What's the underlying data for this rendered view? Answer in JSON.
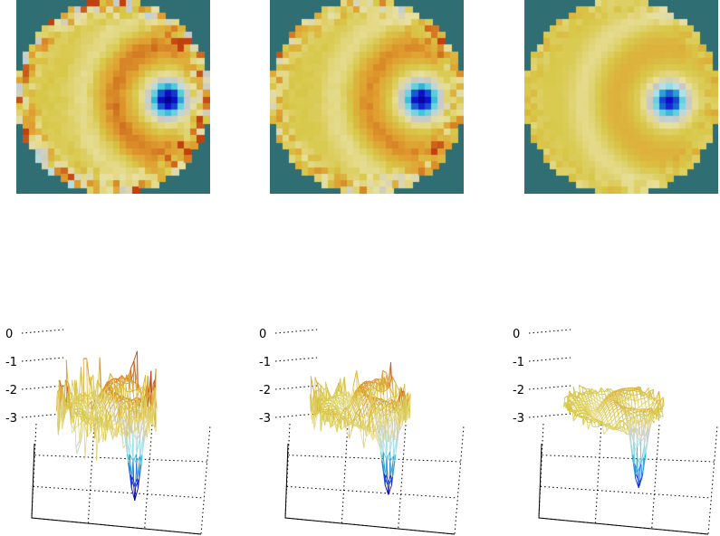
{
  "colors": {
    "background": "#ffffff",
    "mask": "#2f6f73",
    "neutral": "#c8c8c8",
    "colormap": [
      "#00008b",
      "#1010d0",
      "#1a6fd0",
      "#40c8d8",
      "#b4e4e8",
      "#c8c8c8",
      "#e8e0a0",
      "#d8c84a",
      "#e0a030",
      "#c04010"
    ]
  },
  "chart_data": [
    {
      "type": "heatmap",
      "title": "",
      "shape": "disc",
      "dip": {
        "x": 0.57,
        "y": 0.03,
        "depth": -3.4
      },
      "ridge": {
        "x": -0.05,
        "y": 0.05,
        "height": 0.7
      },
      "edge_noise": "high"
    },
    {
      "type": "heatmap",
      "title": "",
      "shape": "disc",
      "dip": {
        "x": 0.57,
        "y": 0.03,
        "depth": -3.3
      },
      "ridge": {
        "x": -0.05,
        "y": 0.05,
        "height": 0.6
      },
      "edge_noise": "medium"
    },
    {
      "type": "heatmap",
      "title": "",
      "shape": "disc",
      "dip": {
        "x": 0.5,
        "y": 0.05,
        "depth": -3.0
      },
      "ridge": {
        "x": 0.0,
        "y": -0.2,
        "height": 0.3
      },
      "edge_noise": "low"
    },
    {
      "type": "surface",
      "zticks": [
        "0",
        "-1",
        "-2",
        "-3"
      ],
      "zlim": [
        -3.5,
        0.6
      ],
      "source": 0
    },
    {
      "type": "surface",
      "zticks": [
        "0",
        "-1",
        "-2",
        "-3"
      ],
      "zlim": [
        -3.5,
        0.6
      ],
      "source": 1
    },
    {
      "type": "surface",
      "zticks": [
        "0",
        "-1",
        "-2",
        "-3"
      ],
      "zlim": [
        -3.5,
        0.6
      ],
      "source": 2
    }
  ]
}
